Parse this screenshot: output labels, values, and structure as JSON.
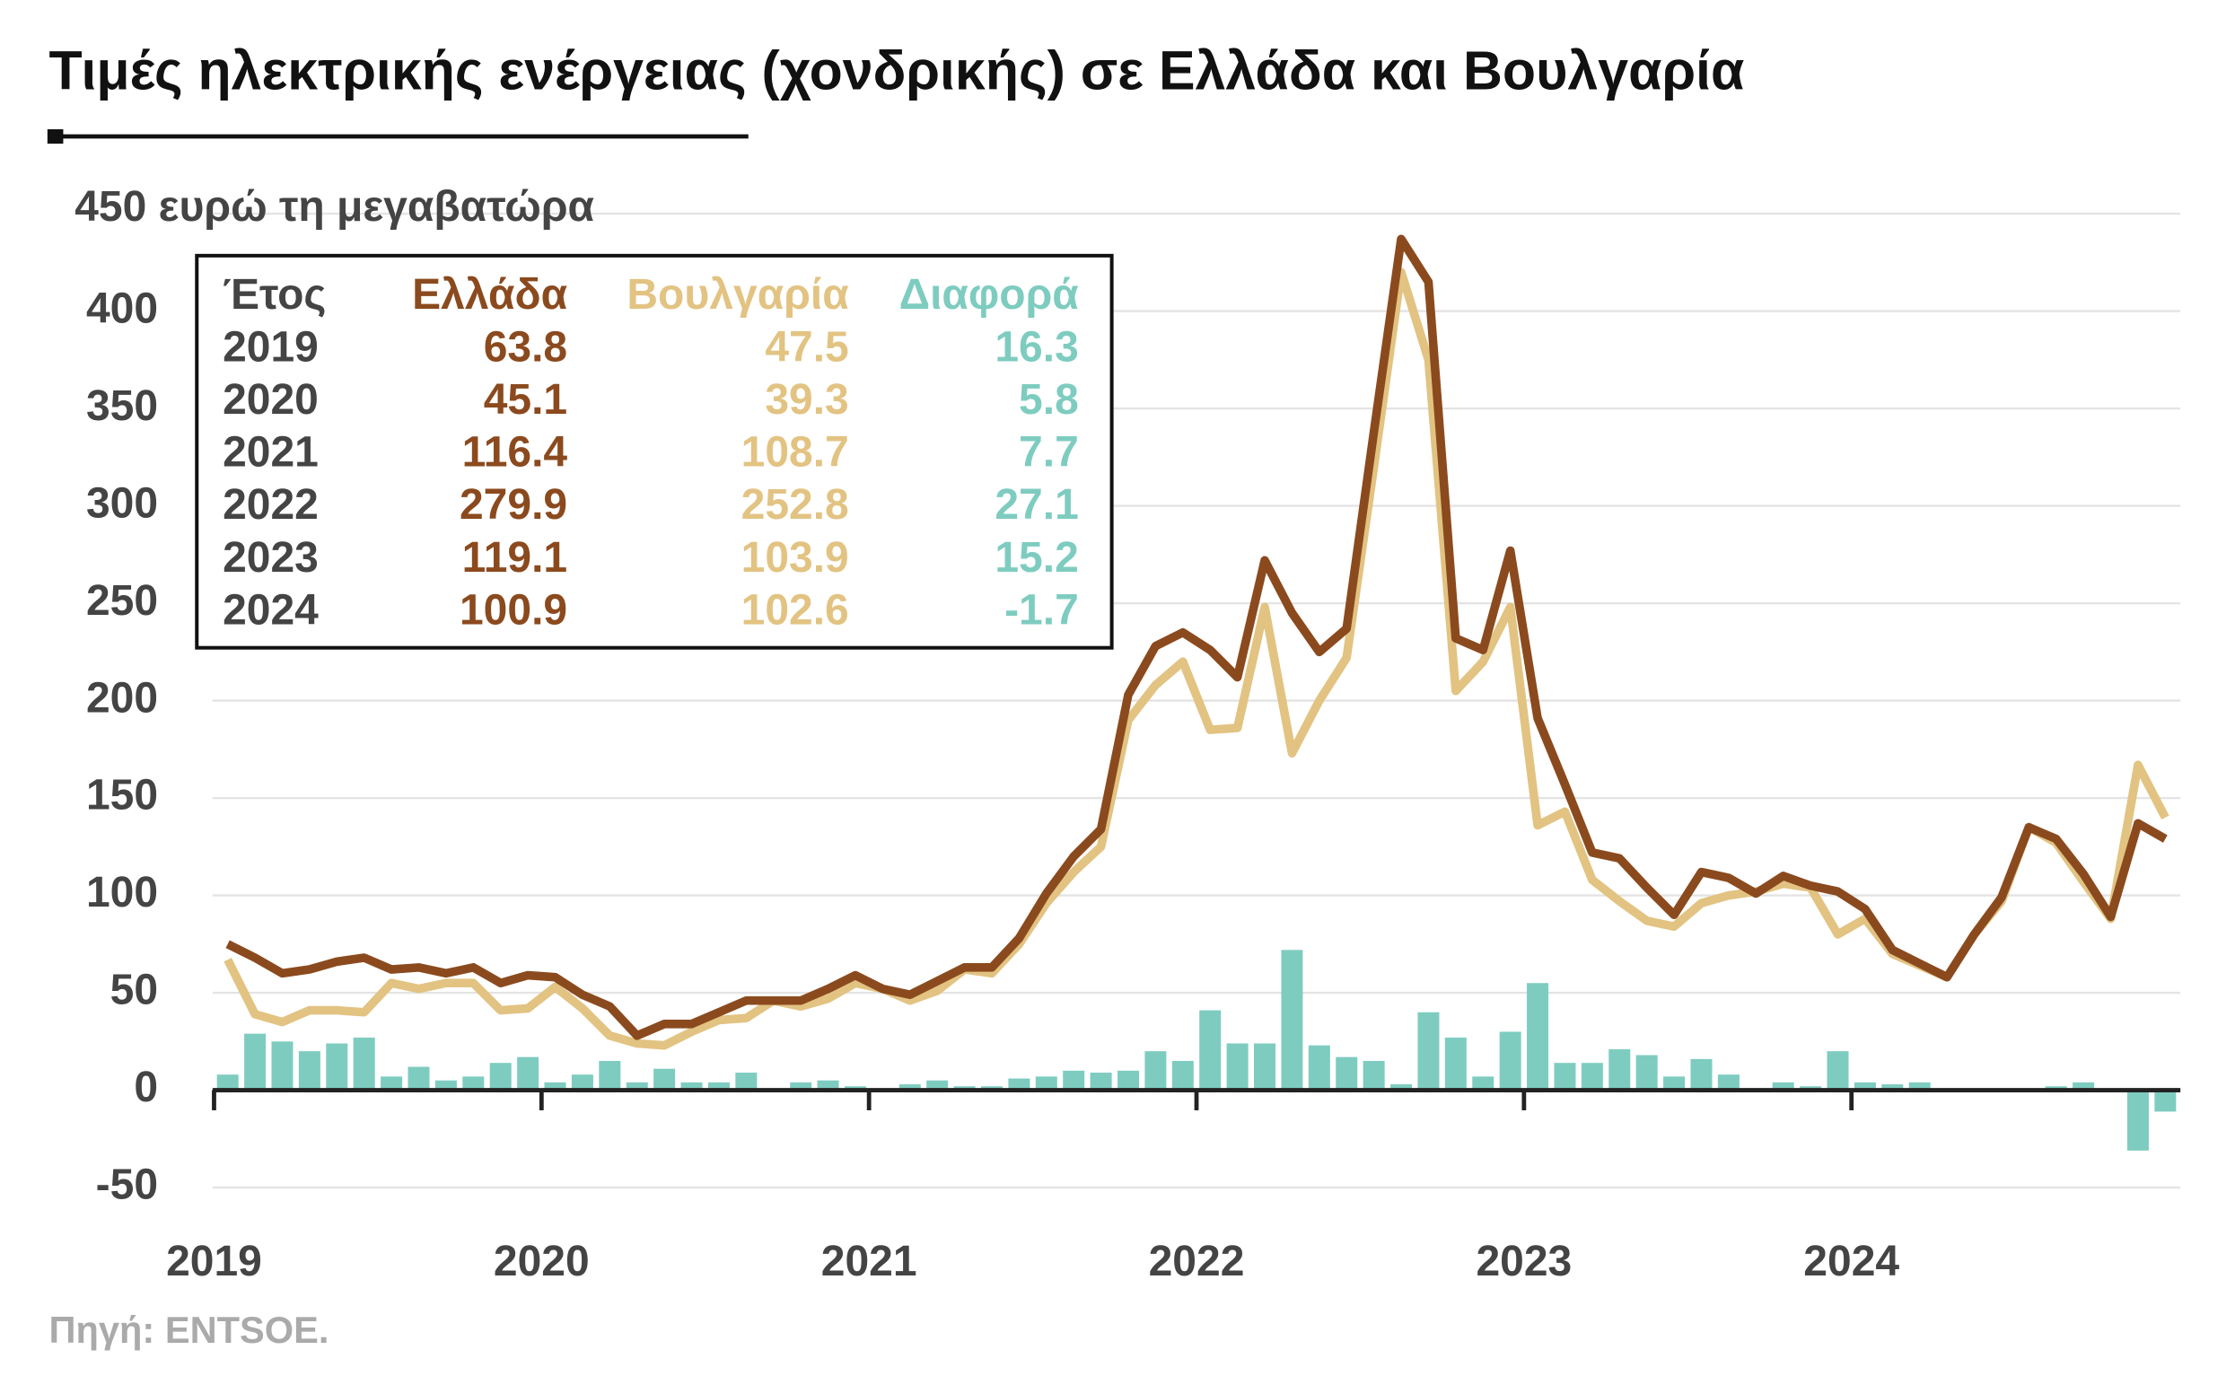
{
  "chart_data": {
    "type": "line",
    "title": "Τιμές ηλεκτρικής ενέργειας (χονδρικής) σε Ελλάδα και Βουλγαρία",
    "source": "Πηγή: ENTSOE.",
    "categories": [
      "2019",
      null,
      null,
      null,
      null,
      null,
      null,
      null,
      null,
      null,
      null,
      null,
      "2020",
      null,
      null,
      null,
      null,
      null,
      null,
      null,
      null,
      null,
      null,
      null,
      "2021",
      null,
      null,
      null,
      null,
      null,
      null,
      null,
      null,
      null,
      null,
      null,
      "2022",
      null,
      null,
      null,
      null,
      null,
      null,
      null,
      null,
      null,
      null,
      null,
      "2023",
      null,
      null,
      null,
      null,
      null,
      null,
      null,
      null,
      null,
      null,
      null,
      "2024",
      null,
      null,
      null,
      null,
      null,
      null,
      null,
      null,
      null,
      null,
      null
    ],
    "series": [
      {
        "name": "Ελλάδα",
        "color": "#8b4a1e",
        "values": [
          75,
          68,
          60,
          62,
          66,
          68,
          62,
          63,
          60,
          63,
          55,
          59,
          58,
          49,
          43,
          28,
          34,
          34,
          40,
          46,
          46,
          46,
          52,
          59,
          52,
          49,
          56,
          63,
          63,
          78,
          101,
          120,
          134,
          203,
          228,
          235,
          226,
          212,
          272,
          245,
          225,
          237,
          338,
          437,
          415,
          232,
          226,
          277,
          191,
          157,
          122,
          119,
          104,
          90,
          112,
          109,
          101,
          110,
          105,
          102,
          93,
          72,
          65,
          58,
          80,
          99,
          135,
          129,
          111,
          89,
          137,
          129
        ]
      },
      {
        "name": "Βουλγαρία",
        "color": "#e2c382",
        "values": [
          67,
          39,
          35,
          41,
          41,
          40,
          55,
          52,
          55,
          55,
          41,
          42,
          53,
          42,
          28,
          24,
          23,
          30,
          36,
          37,
          46,
          43,
          47,
          55,
          52,
          46,
          51,
          62,
          60,
          75,
          96,
          112,
          125,
          190,
          208,
          220,
          185,
          186,
          248,
          173,
          200,
          222,
          320,
          420,
          375,
          205,
          220,
          248,
          136,
          143,
          108,
          97,
          87,
          84,
          96,
          100,
          102,
          106,
          104,
          80,
          88,
          70,
          64,
          58,
          80,
          97,
          135,
          127,
          107,
          88,
          167,
          140
        ]
      },
      {
        "name": "Διαφορά",
        "color": "#7eccc0",
        "type": "bar",
        "values": [
          8,
          29,
          25,
          20,
          24,
          27,
          7,
          12,
          5,
          7,
          14,
          17,
          4,
          8,
          15,
          4,
          11,
          4,
          4,
          9,
          0,
          4,
          5,
          2,
          0,
          3,
          5,
          2,
          2,
          6,
          7,
          10,
          9,
          10,
          20,
          15,
          41,
          24,
          24,
          72,
          23,
          17,
          15,
          3,
          40,
          27,
          7,
          30,
          55,
          14,
          14,
          21,
          18,
          7,
          16,
          8,
          0,
          4,
          2,
          20,
          4,
          3,
          4,
          1,
          0,
          0,
          0,
          2,
          4,
          0,
          -31,
          -11
        ]
      }
    ],
    "ylim": [
      -60,
      460
    ],
    "yticks": [
      -50,
      0,
      50,
      100,
      150,
      200,
      250,
      300,
      350,
      400,
      {
        "value": 450,
        "label": "450 ευρώ τη μεγαβατώρα"
      }
    ],
    "grid": true,
    "table": {
      "year_header": "Έτος",
      "rows": [
        [
          "2019",
          63.8,
          47.5,
          16.3
        ],
        [
          "2020",
          45.1,
          39.3,
          5.8
        ],
        [
          "2021",
          116.4,
          108.7,
          7.7
        ],
        [
          "2022",
          279.9,
          252.8,
          27.1
        ],
        [
          "2023",
          119.1,
          103.9,
          15.2
        ],
        [
          "2024",
          100.9,
          102.6,
          -1.7
        ]
      ]
    }
  }
}
